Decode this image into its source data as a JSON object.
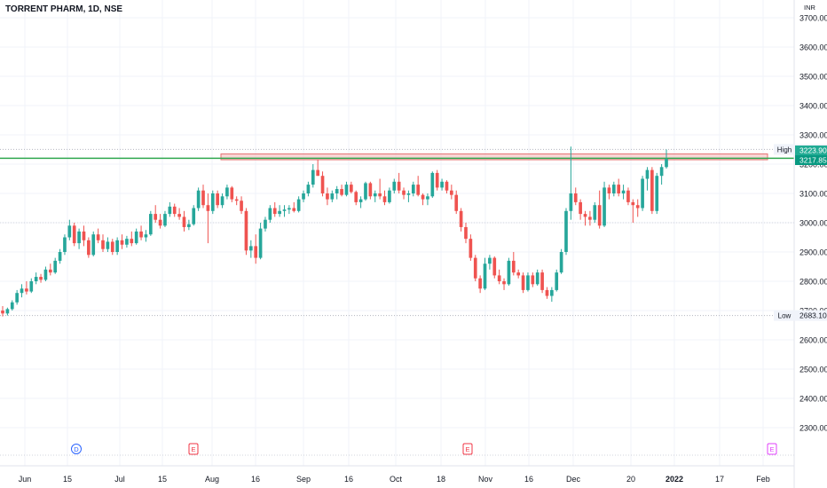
{
  "chart_data": {
    "type": "candlestick",
    "title": "TORRENT PHARM, 1D, NSE",
    "currency": "INR",
    "ylim": [
      2200,
      3750
    ],
    "y_ticks": [
      3700,
      3600,
      3500,
      3400,
      3300,
      3200,
      3100,
      3000,
      2900,
      2800,
      2700,
      2600,
      2500,
      2400,
      2300
    ],
    "x_ticks": [
      "Jun",
      "15",
      "Jul",
      "15",
      "Aug",
      "16",
      "Sep",
      "16",
      "Oct",
      "18",
      "Nov",
      "16",
      "Dec",
      "20",
      "2022",
      "17",
      "Feb"
    ],
    "grid": true,
    "markers": [
      {
        "label": "High",
        "value": "3250.20"
      },
      {
        "label": "Low",
        "value": "2683.10"
      }
    ],
    "price_tags": [
      {
        "value": "3223.90",
        "color": "#22ab94"
      },
      {
        "value": "3217.85",
        "color": "#089981"
      }
    ],
    "resistance_zone": [
      3215,
      3235
    ],
    "support_line": 3220,
    "events": [
      {
        "letter": "D",
        "color": "#2962ff"
      },
      {
        "letter": "E",
        "color": "#f23645"
      },
      {
        "letter": "E",
        "color": "#f23645"
      },
      {
        "letter": "E",
        "color": "#e040fb"
      }
    ],
    "candles": [
      [
        2700,
        2715,
        2680,
        2690
      ],
      [
        2690,
        2710,
        2683,
        2705
      ],
      [
        2705,
        2735,
        2700,
        2728
      ],
      [
        2728,
        2770,
        2720,
        2760
      ],
      [
        2760,
        2790,
        2745,
        2775
      ],
      [
        2775,
        2800,
        2755,
        2765
      ],
      [
        2765,
        2810,
        2760,
        2800
      ],
      [
        2800,
        2830,
        2790,
        2815
      ],
      [
        2815,
        2825,
        2795,
        2805
      ],
      [
        2805,
        2850,
        2800,
        2840
      ],
      [
        2840,
        2860,
        2820,
        2830
      ],
      [
        2830,
        2880,
        2825,
        2870
      ],
      [
        2870,
        2910,
        2860,
        2900
      ],
      [
        2900,
        2960,
        2890,
        2950
      ],
      [
        2950,
        3010,
        2940,
        2990
      ],
      [
        2990,
        3000,
        2920,
        2930
      ],
      [
        2930,
        2980,
        2910,
        2970
      ],
      [
        2970,
        2990,
        2920,
        2940
      ],
      [
        2940,
        2950,
        2880,
        2890
      ],
      [
        2890,
        2970,
        2885,
        2960
      ],
      [
        2960,
        2980,
        2930,
        2940
      ],
      [
        2940,
        2960,
        2900,
        2910
      ],
      [
        2910,
        2950,
        2900,
        2935
      ],
      [
        2935,
        2945,
        2890,
        2900
      ],
      [
        2900,
        2950,
        2890,
        2940
      ],
      [
        2940,
        2960,
        2910,
        2925
      ],
      [
        2925,
        2955,
        2915,
        2945
      ],
      [
        2945,
        2970,
        2920,
        2930
      ],
      [
        2930,
        2980,
        2925,
        2970
      ],
      [
        2970,
        2990,
        2940,
        2950
      ],
      [
        2950,
        2975,
        2935,
        2960
      ],
      [
        2960,
        3040,
        2955,
        3030
      ],
      [
        3030,
        3060,
        3000,
        3010
      ],
      [
        3010,
        3030,
        2980,
        2990
      ],
      [
        2990,
        3040,
        2985,
        3030
      ],
      [
        3030,
        3070,
        3020,
        3055
      ],
      [
        3055,
        3065,
        3020,
        3030
      ],
      [
        3030,
        3050,
        3010,
        3020
      ],
      [
        3020,
        3040,
        2970,
        2985
      ],
      [
        2985,
        3010,
        2975,
        2995
      ],
      [
        2995,
        3060,
        2990,
        3050
      ],
      [
        3050,
        3120,
        3040,
        3110
      ],
      [
        3110,
        3130,
        3050,
        3060
      ],
      [
        3060,
        3100,
        2930,
        3040
      ],
      [
        3040,
        3110,
        3030,
        3100
      ],
      [
        3100,
        3110,
        3050,
        3060
      ],
      [
        3060,
        3100,
        3050,
        3090
      ],
      [
        3090,
        3130,
        3080,
        3120
      ],
      [
        3120,
        3125,
        3070,
        3080
      ],
      [
        3080,
        3090,
        3060,
        3075
      ],
      [
        3075,
        3090,
        3030,
        3040
      ],
      [
        3040,
        3050,
        2890,
        2905
      ],
      [
        2905,
        2940,
        2880,
        2920
      ],
      [
        2920,
        2960,
        2860,
        2880
      ],
      [
        2880,
        3000,
        2875,
        2980
      ],
      [
        2980,
        3020,
        2970,
        3010
      ],
      [
        3010,
        3060,
        3000,
        3050
      ],
      [
        3050,
        3070,
        3020,
        3030
      ],
      [
        3030,
        3060,
        3020,
        3040
      ],
      [
        3040,
        3060,
        3020,
        3045
      ],
      [
        3045,
        3060,
        3030,
        3050
      ],
      [
        3050,
        3070,
        3035,
        3040
      ],
      [
        3040,
        3090,
        3035,
        3080
      ],
      [
        3080,
        3110,
        3070,
        3100
      ],
      [
        3100,
        3140,
        3090,
        3130
      ],
      [
        3130,
        3200,
        3120,
        3180
      ],
      [
        3180,
        3215,
        3160,
        3160
      ],
      [
        3160,
        3175,
        3090,
        3100
      ],
      [
        3100,
        3120,
        3060,
        3080
      ],
      [
        3080,
        3110,
        3070,
        3100
      ],
      [
        3100,
        3125,
        3080,
        3115
      ],
      [
        3115,
        3130,
        3090,
        3095
      ],
      [
        3095,
        3140,
        3090,
        3130
      ],
      [
        3130,
        3140,
        3100,
        3105
      ],
      [
        3105,
        3110,
        3060,
        3070
      ],
      [
        3070,
        3090,
        3050,
        3080
      ],
      [
        3080,
        3140,
        3075,
        3135
      ],
      [
        3135,
        3140,
        3080,
        3090
      ],
      [
        3090,
        3110,
        3070,
        3100
      ],
      [
        3100,
        3150,
        3080,
        3090
      ],
      [
        3090,
        3110,
        3060,
        3070
      ],
      [
        3070,
        3120,
        3065,
        3110
      ],
      [
        3110,
        3150,
        3100,
        3140
      ],
      [
        3140,
        3170,
        3100,
        3110
      ],
      [
        3110,
        3120,
        3080,
        3095
      ],
      [
        3095,
        3110,
        3070,
        3100
      ],
      [
        3100,
        3140,
        3090,
        3130
      ],
      [
        3130,
        3160,
        3090,
        3095
      ],
      [
        3095,
        3100,
        3060,
        3080
      ],
      [
        3080,
        3100,
        3060,
        3090
      ],
      [
        3090,
        3175,
        3085,
        3170
      ],
      [
        3170,
        3180,
        3110,
        3120
      ],
      [
        3120,
        3150,
        3110,
        3140
      ],
      [
        3140,
        3145,
        3100,
        3110
      ],
      [
        3110,
        3130,
        3080,
        3095
      ],
      [
        3095,
        3110,
        3030,
        3040
      ],
      [
        3040,
        3050,
        2970,
        2985
      ],
      [
        2985,
        3000,
        2930,
        2945
      ],
      [
        2945,
        2960,
        2870,
        2880
      ],
      [
        2880,
        2890,
        2800,
        2810
      ],
      [
        2810,
        2820,
        2760,
        2775
      ],
      [
        2775,
        2880,
        2770,
        2860
      ],
      [
        2860,
        2890,
        2840,
        2880
      ],
      [
        2880,
        2885,
        2810,
        2820
      ],
      [
        2820,
        2840,
        2790,
        2800
      ],
      [
        2800,
        2810,
        2770,
        2790
      ],
      [
        2790,
        2880,
        2785,
        2870
      ],
      [
        2870,
        2900,
        2820,
        2830
      ],
      [
        2830,
        2840,
        2810,
        2820
      ],
      [
        2820,
        2830,
        2760,
        2770
      ],
      [
        2770,
        2830,
        2765,
        2820
      ],
      [
        2820,
        2830,
        2780,
        2790
      ],
      [
        2790,
        2840,
        2785,
        2830
      ],
      [
        2830,
        2840,
        2760,
        2770
      ],
      [
        2770,
        2780,
        2740,
        2750
      ],
      [
        2750,
        2780,
        2730,
        2770
      ],
      [
        2770,
        2840,
        2765,
        2830
      ],
      [
        2830,
        2910,
        2825,
        2900
      ],
      [
        2900,
        3050,
        2890,
        3040
      ],
      [
        3040,
        3260,
        3010,
        3100
      ],
      [
        3100,
        3120,
        3060,
        3070
      ],
      [
        3070,
        3080,
        3010,
        3030
      ],
      [
        3030,
        3040,
        2990,
        3020
      ],
      [
        3020,
        3040,
        2990,
        3010
      ],
      [
        3010,
        3070,
        3000,
        3060
      ],
      [
        3060,
        3110,
        2980,
        2990
      ],
      [
        2990,
        3140,
        2985,
        3120
      ],
      [
        3120,
        3130,
        3080,
        3100
      ],
      [
        3100,
        3140,
        3090,
        3130
      ],
      [
        3130,
        3150,
        3090,
        3100
      ],
      [
        3100,
        3130,
        3080,
        3110
      ],
      [
        3110,
        3120,
        3060,
        3070
      ],
      [
        3070,
        3080,
        3000,
        3060
      ],
      [
        3060,
        3080,
        3020,
        3050
      ],
      [
        3050,
        3160,
        3040,
        3150
      ],
      [
        3150,
        3190,
        3110,
        3180
      ],
      [
        3180,
        3190,
        3030,
        3040
      ],
      [
        3040,
        3170,
        3030,
        3160
      ],
      [
        3160,
        3200,
        3130,
        3190
      ],
      [
        3190,
        3250,
        3185,
        3218
      ]
    ]
  }
}
